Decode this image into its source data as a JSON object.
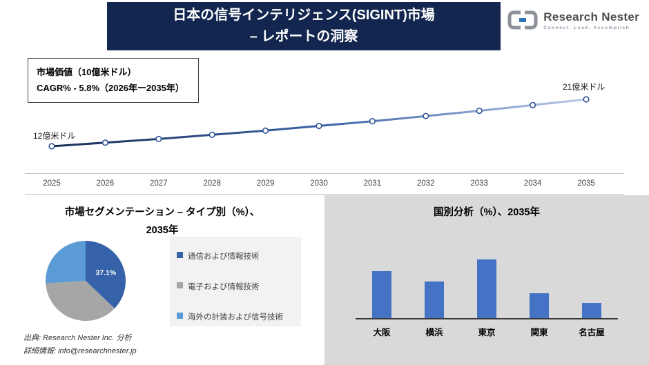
{
  "header": {
    "title_line1": "日本の信号インテリジェンス(SIGINT)市場",
    "title_line2": "– レポートの洞察",
    "logo": {
      "name": "Research Nester",
      "tagline": "Connect. Lead. Accomplish"
    }
  },
  "info_box": {
    "market_value_label": "市場価値（10億米ドル）",
    "cagr_label": "CAGR% - 5.8%（2026年ー2035年）"
  },
  "line_chart_labels": {
    "start_label": "12億米ドル",
    "end_label": "21億米ドル"
  },
  "pie_section": {
    "title_line1": "市場セグメンテーション – タイプ別（%）、",
    "title_line2": "2035年"
  },
  "bar_section": {
    "title": "国別分析（%）、2035年"
  },
  "footer": {
    "source": "出典: Research Nester Inc. 分析",
    "contact": "詳細情報: info@researchnester.jp"
  },
  "colors": {
    "header_bg": "#13264f",
    "panel_gray": "#d9d9d9",
    "bar_blue": "#4472c4",
    "pie_dark_blue": "#3562a8",
    "pie_gray": "#a6a6a6",
    "pie_light_blue": "#5b9bd5"
  },
  "chart_data": [
    {
      "type": "line",
      "title": "市場価値（10億米ドル）",
      "x": [
        2025,
        2026,
        2027,
        2028,
        2029,
        2030,
        2031,
        2032,
        2033,
        2034,
        2035
      ],
      "values": [
        12,
        12.7,
        13.4,
        14.2,
        15.0,
        15.9,
        16.8,
        17.8,
        18.8,
        19.9,
        21
      ],
      "ylim": [
        12,
        21
      ],
      "annotations": [
        "12億米ドル",
        "21億米ドル"
      ],
      "cagr_percent": 5.8
    },
    {
      "type": "pie",
      "title": "市場セグメンテーション – タイプ別（%）、2035年",
      "categories": [
        "通信および情報技術",
        "電子および情報技術",
        "海外の計装および信号技術"
      ],
      "values": [
        37.1,
        36.9,
        26.0
      ],
      "labels_shown": [
        "37.1%"
      ],
      "colors": [
        "#3562a8",
        "#a6a6a6",
        "#5b9bd5"
      ],
      "legend_position": "right"
    },
    {
      "type": "bar",
      "title": "国別分析（%）、2035年",
      "categories": [
        "大阪",
        "横浜",
        "東京",
        "関東",
        "名古屋"
      ],
      "values": [
        28,
        22,
        35,
        15,
        9
      ],
      "color": "#4472c4",
      "ylim": [
        0,
        35
      ]
    }
  ]
}
